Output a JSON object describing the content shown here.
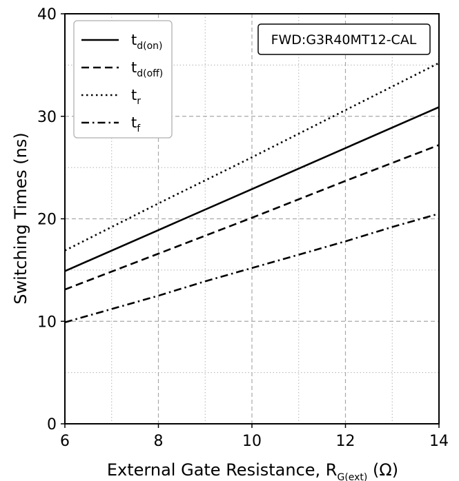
{
  "chart_data": {
    "type": "line",
    "title": "",
    "xlabel": {
      "main": "External Gate Resistance, R",
      "sub": "G(ext)",
      "unit": " (Ω)"
    },
    "ylabel": "Switching Times (ns)",
    "xlim": [
      6,
      14
    ],
    "ylim": [
      0,
      40
    ],
    "xticks": [
      6,
      8,
      10,
      12,
      14
    ],
    "yticks": [
      0,
      10,
      20,
      30,
      40
    ],
    "x_major_grid": [
      8,
      10,
      12
    ],
    "x_minor_grid": [
      7,
      9,
      11,
      13
    ],
    "y_major_grid": [
      10,
      20,
      30
    ],
    "y_minor_grid": [
      5,
      15,
      25,
      35
    ],
    "grid": true,
    "legend_position": "top-left",
    "annotation": "FWD:G3R40MT12-CAL",
    "series": [
      {
        "name": "t",
        "sub": "d(on)",
        "style": "solid",
        "x": [
          6,
          8,
          10,
          12,
          14
        ],
        "y": [
          14.9,
          18.9,
          22.9,
          26.9,
          30.9
        ]
      },
      {
        "name": "t",
        "sub": "d(off)",
        "style": "dashed",
        "x": [
          6,
          8,
          10,
          12,
          14
        ],
        "y": [
          13.1,
          16.6,
          20.1,
          23.7,
          27.2
        ]
      },
      {
        "name": "t",
        "sub": "r",
        "style": "dotted",
        "x": [
          6,
          8,
          10,
          12,
          14
        ],
        "y": [
          16.9,
          21.5,
          26.0,
          30.6,
          35.2
        ]
      },
      {
        "name": "t",
        "sub": "f",
        "style": "dashdot",
        "x": [
          6,
          7,
          8,
          9,
          10,
          11,
          12,
          13,
          14
        ],
        "y": [
          9.9,
          11.2,
          12.5,
          13.9,
          15.2,
          16.5,
          17.8,
          19.2,
          20.5
        ]
      }
    ]
  }
}
